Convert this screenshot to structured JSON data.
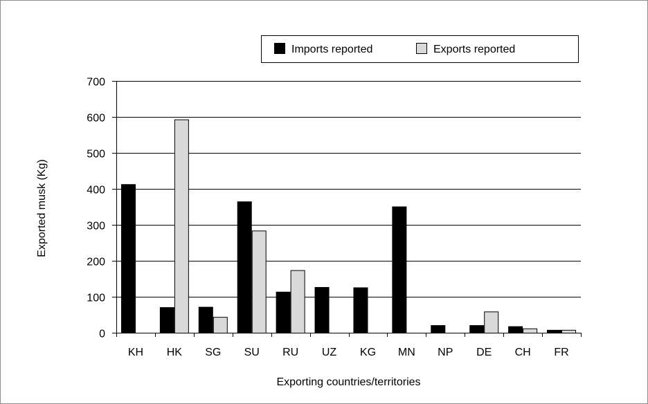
{
  "chart_data": {
    "type": "bar",
    "categories": [
      "KH",
      "HK",
      "SG",
      "SU",
      "RU",
      "UZ",
      "KG",
      "MN",
      "NP",
      "DE",
      "CH",
      "FR"
    ],
    "series": [
      {
        "name": "Imports reported",
        "color": "#000000",
        "values": [
          413,
          71,
          72,
          365,
          114,
          127,
          126,
          351,
          21,
          21,
          18,
          8
        ]
      },
      {
        "name": "Exports reported",
        "color": "#d9d9d9",
        "values": [
          0,
          593,
          44,
          284,
          174,
          0,
          0,
          0,
          0,
          59,
          12,
          8
        ]
      }
    ],
    "xlabel": "Exporting countries/territories",
    "ylabel": "Exported musk (Kg)",
    "ylim": [
      0,
      700
    ],
    "yticks": [
      0,
      100,
      200,
      300,
      400,
      500,
      600,
      700
    ],
    "grid": true,
    "legend_position": "top-right"
  }
}
